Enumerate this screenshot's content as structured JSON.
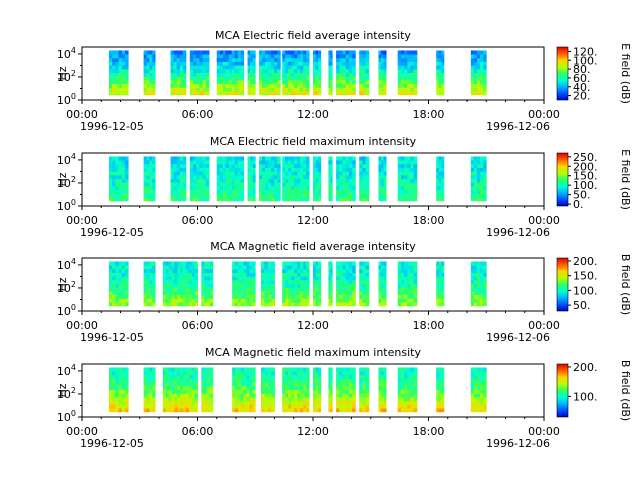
{
  "chart_data": [
    {
      "type": "heatmap",
      "title": "MCA  Electric field average intensity",
      "ylabel": "Hz",
      "colorbar_label": "E field (dB)",
      "colorbar_ticks": [
        "20.",
        "40.",
        "60.",
        "80.",
        "100.",
        "120."
      ],
      "colorbar_range": [
        10,
        130
      ],
      "yticks": [
        "10^0",
        "10^2",
        "10^4"
      ],
      "xticks": [
        "00:00",
        "06:00",
        "12:00",
        "18:00",
        "00:00"
      ],
      "date_start": "1996-12-05",
      "date_end": "1996-12-06",
      "intervals_hours": [
        [
          1.4,
          2.4
        ],
        [
          3.2,
          3.8
        ],
        [
          4.6,
          5.4
        ],
        [
          5.6,
          6.6
        ],
        [
          7.0,
          8.4
        ],
        [
          8.6,
          9.0
        ],
        [
          9.2,
          10.3
        ],
        [
          10.4,
          11.8
        ],
        [
          12.0,
          12.4
        ],
        [
          12.8,
          13.0
        ],
        [
          13.2,
          14.2
        ],
        [
          14.4,
          14.9
        ],
        [
          15.4,
          15.8
        ],
        [
          16.4,
          17.4
        ],
        [
          18.4,
          18.8
        ],
        [
          20.2,
          21.0
        ]
      ],
      "profile_db": [
        95,
        80,
        65,
        50,
        40,
        32
      ]
    },
    {
      "type": "heatmap",
      "title": "MCA  Electric field maximum intensity",
      "ylabel": "Hz",
      "colorbar_label": "E field (dB)",
      "colorbar_ticks": [
        "0.",
        "50.",
        "100.",
        "150.",
        "200.",
        "250."
      ],
      "colorbar_range": [
        -10,
        270
      ],
      "yticks": [
        "10^0",
        "10^2",
        "10^4"
      ],
      "xticks": [
        "00:00",
        "06:00",
        "12:00",
        "18:00",
        "00:00"
      ],
      "date_start": "1996-12-05",
      "date_end": "1996-12-06",
      "intervals_hours": [
        [
          1.4,
          2.4
        ],
        [
          3.2,
          3.8
        ],
        [
          4.6,
          5.4
        ],
        [
          5.6,
          6.6
        ],
        [
          7.0,
          8.4
        ],
        [
          8.6,
          9.0
        ],
        [
          9.2,
          10.3
        ],
        [
          10.4,
          11.8
        ],
        [
          12.0,
          12.4
        ],
        [
          12.8,
          13.0
        ],
        [
          13.2,
          14.2
        ],
        [
          14.4,
          14.9
        ],
        [
          15.4,
          15.8
        ],
        [
          16.4,
          17.4
        ],
        [
          18.4,
          18.8
        ],
        [
          20.2,
          21.0
        ]
      ],
      "profile_db": [
        120,
        110,
        100,
        90,
        85,
        80
      ]
    },
    {
      "type": "heatmap",
      "title": "MCA  Magnetic field average intensity",
      "ylabel": "Hz",
      "colorbar_label": "B field (dB)",
      "colorbar_ticks": [
        "50.",
        "100.",
        "150.",
        "200."
      ],
      "colorbar_range": [
        30,
        210
      ],
      "yticks": [
        "10^0",
        "10^2",
        "10^4"
      ],
      "xticks": [
        "00:00",
        "06:00",
        "12:00",
        "18:00",
        "00:00"
      ],
      "date_start": "1996-12-05",
      "date_end": "1996-12-06",
      "intervals_hours": [
        [
          1.4,
          2.4
        ],
        [
          3.2,
          3.8
        ],
        [
          4.2,
          6.0
        ],
        [
          6.2,
          6.8
        ],
        [
          7.8,
          9.0
        ],
        [
          9.3,
          10.0
        ],
        [
          10.4,
          11.8
        ],
        [
          12.0,
          12.4
        ],
        [
          12.8,
          13.0
        ],
        [
          13.2,
          14.2
        ],
        [
          14.4,
          14.9
        ],
        [
          15.4,
          15.8
        ],
        [
          16.4,
          17.4
        ],
        [
          18.4,
          18.8
        ],
        [
          20.2,
          21.0
        ]
      ],
      "profile_db": [
        140,
        125,
        110,
        100,
        95,
        95
      ]
    },
    {
      "type": "heatmap",
      "title": "MCA  Magnetic field maximum intensity",
      "ylabel": "Hz",
      "colorbar_label": "B field (dB)",
      "colorbar_ticks": [
        "100.",
        "200."
      ],
      "colorbar_range": [
        30,
        210
      ],
      "yticks": [
        "10^0",
        "10^2",
        "10^4"
      ],
      "xticks": [
        "00:00",
        "06:00",
        "12:00",
        "18:00",
        "00:00"
      ],
      "date_start": "1996-12-05",
      "date_end": "1996-12-06",
      "intervals_hours": [
        [
          1.4,
          2.4
        ],
        [
          3.2,
          3.8
        ],
        [
          4.2,
          6.0
        ],
        [
          6.2,
          6.8
        ],
        [
          7.8,
          9.0
        ],
        [
          9.3,
          10.0
        ],
        [
          10.4,
          11.8
        ],
        [
          12.0,
          12.4
        ],
        [
          12.8,
          13.0
        ],
        [
          13.2,
          14.2
        ],
        [
          14.4,
          14.9
        ],
        [
          15.4,
          15.8
        ],
        [
          16.4,
          17.4
        ],
        [
          18.4,
          18.8
        ],
        [
          20.2,
          21.0
        ]
      ],
      "profile_db": [
        165,
        150,
        130,
        115,
        105,
        100
      ]
    }
  ]
}
